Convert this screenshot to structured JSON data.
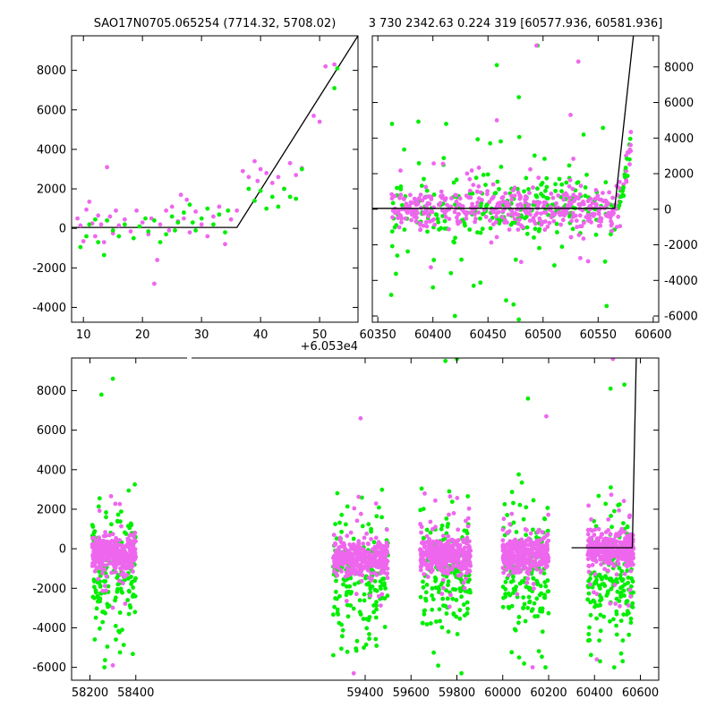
{
  "chart_data": [
    {
      "id": "top-left",
      "type": "scatter",
      "title": "SAO17N0705.065254 (7714.32, 5708.02)",
      "xlim": [
        8,
        56.5
      ],
      "ylim": [
        -4750,
        9750
      ],
      "xticks": [
        10,
        20,
        30,
        40,
        50
      ],
      "yticks": [
        -4000,
        -2000,
        0,
        2000,
        4000,
        6000,
        8000
      ],
      "offset_label": "+6.053e4",
      "series": [
        {
          "color": "#ee66ee",
          "points": [
            [
              9,
              500
            ],
            [
              9.5,
              150
            ],
            [
              10,
              -650
            ],
            [
              10.5,
              950
            ],
            [
              11,
              1350
            ],
            [
              11.5,
              250
            ],
            [
              12,
              -400
            ],
            [
              12.5,
              650
            ],
            [
              13,
              200
            ],
            [
              13.5,
              -700
            ],
            [
              14,
              3100
            ],
            [
              14.5,
              600
            ],
            [
              15,
              -250
            ],
            [
              15.5,
              900
            ],
            [
              16,
              150
            ],
            [
              17,
              450
            ],
            [
              18,
              -150
            ],
            [
              19,
              900
            ],
            [
              20,
              300
            ],
            [
              21,
              -300
            ],
            [
              21.5,
              500
            ],
            [
              22,
              -2800
            ],
            [
              22.5,
              -1600
            ],
            [
              23,
              200
            ],
            [
              24,
              900
            ],
            [
              24.5,
              -100
            ],
            [
              25,
              1100
            ],
            [
              26,
              350
            ],
            [
              26.5,
              1700
            ],
            [
              27,
              500
            ],
            [
              27.5,
              1450
            ],
            [
              28,
              -200
            ],
            [
              29,
              850
            ],
            [
              30,
              200
            ],
            [
              31,
              -400
            ],
            [
              32,
              600
            ],
            [
              33,
              1100
            ],
            [
              34,
              -800
            ],
            [
              35,
              450
            ],
            [
              36,
              900
            ],
            [
              37,
              2900
            ],
            [
              38,
              2600
            ],
            [
              39,
              3400
            ],
            [
              39.5,
              2400
            ],
            [
              40,
              3000
            ],
            [
              41,
              2800
            ],
            [
              42,
              2300
            ],
            [
              43,
              2600
            ],
            [
              44,
              2000
            ],
            [
              45,
              3300
            ],
            [
              46,
              2700
            ],
            [
              47,
              3050
            ],
            [
              49,
              5700
            ],
            [
              50,
              5400
            ],
            [
              51,
              8200
            ],
            [
              52.5,
              8300
            ]
          ]
        },
        {
          "color": "#00ee00",
          "points": [
            [
              9.5,
              -950
            ],
            [
              10.5,
              -400
            ],
            [
              11,
              200
            ],
            [
              12,
              450
            ],
            [
              12.5,
              -700
            ],
            [
              13.5,
              -1350
            ],
            [
              14,
              400
            ],
            [
              15,
              -100
            ],
            [
              16,
              -400
            ],
            [
              17,
              200
            ],
            [
              18.5,
              -500
            ],
            [
              19.5,
              100
            ],
            [
              20.5,
              500
            ],
            [
              21,
              -150
            ],
            [
              22,
              400
            ],
            [
              23,
              -700
            ],
            [
              24,
              -300
            ],
            [
              25,
              600
            ],
            [
              25.5,
              -100
            ],
            [
              26,
              300
            ],
            [
              27,
              800
            ],
            [
              28,
              1200
            ],
            [
              28.5,
              300
            ],
            [
              29,
              -100
            ],
            [
              30,
              500
            ],
            [
              31,
              1000
            ],
            [
              32,
              200
            ],
            [
              33,
              700
            ],
            [
              34,
              -200
            ],
            [
              34.5,
              900
            ],
            [
              38,
              2000
            ],
            [
              39,
              1400
            ],
            [
              40,
              1900
            ],
            [
              41,
              1000
            ],
            [
              42,
              1600
            ],
            [
              43,
              1100
            ],
            [
              44,
              2000
            ],
            [
              45,
              1600
            ],
            [
              46,
              1500
            ],
            [
              47,
              3000
            ],
            [
              52.5,
              7100
            ],
            [
              53,
              8100
            ]
          ]
        }
      ],
      "model_line": [
        [
          8,
          50
        ],
        [
          36,
          50
        ],
        [
          56.5,
          9750
        ]
      ]
    },
    {
      "id": "top-right",
      "type": "scatter",
      "title": "3 730 2342.63 0.224 319 [60577.936, 60581.936]",
      "xlim": [
        60345,
        60605
      ],
      "ylim": [
        -6350,
        9750
      ],
      "xticks": [
        60350,
        60400,
        60450,
        60500,
        60550,
        60600
      ],
      "yticks": [
        -6000,
        -4000,
        -2000,
        0,
        2000,
        4000,
        6000,
        8000
      ],
      "model_line": [
        [
          60345,
          50
        ],
        [
          60565,
          50
        ],
        [
          60582,
          9750
        ]
      ]
    },
    {
      "id": "bottom",
      "type": "scatter",
      "xlim": [
        58120,
        60680
      ],
      "ylim": [
        -6650,
        9650
      ],
      "xticks": [
        58200,
        58400,
        59400,
        59600,
        59800,
        60000,
        60200,
        60400,
        60600
      ],
      "yticks": [
        -6000,
        -4000,
        -2000,
        0,
        2000,
        4000,
        6000,
        8000
      ],
      "model_line": [
        [
          60300,
          50
        ],
        [
          60565,
          50
        ],
        [
          60582,
          9650
        ]
      ]
    }
  ]
}
